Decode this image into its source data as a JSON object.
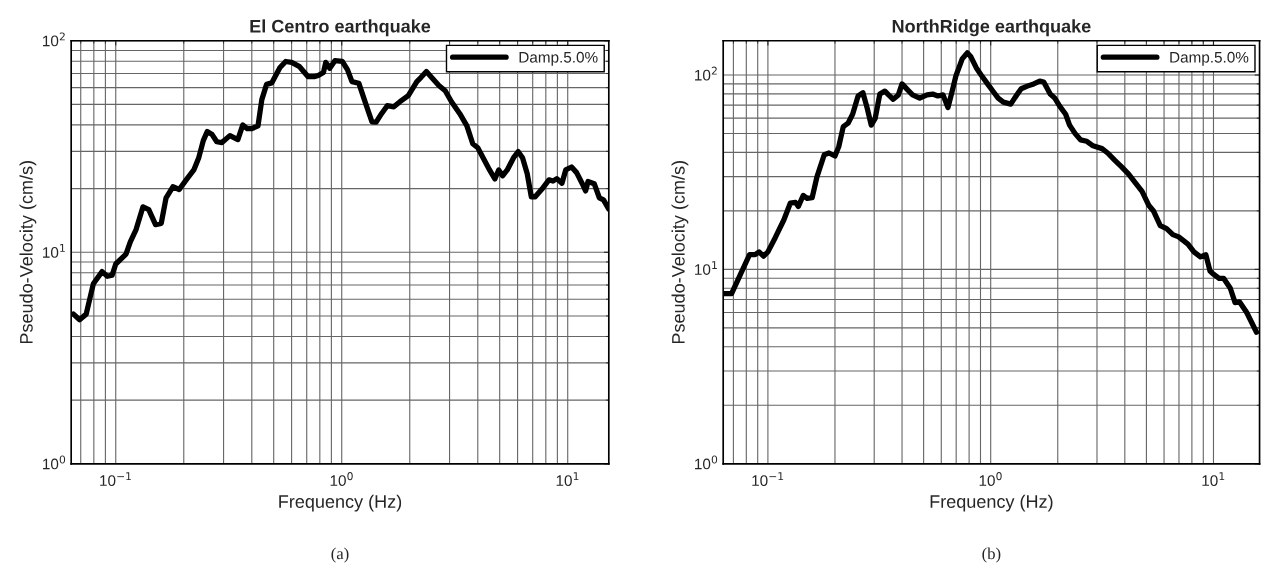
{
  "chart_data": [
    {
      "type": "line",
      "title": "El Centro earthquake",
      "xlabel": "Frequency (Hz)",
      "ylabel": "Pseudo-Velocity (cm/s)",
      "log": "xy",
      "grid": true,
      "legend": "top right",
      "line_style": "solid",
      "xlim": [
        0.0635,
        15.2
      ],
      "ylim": [
        1,
        100
      ],
      "xticks": [
        {
          "value": 0.1,
          "label": "10$^{−1}$"
        },
        {
          "value": 1,
          "label": "10$^{0}$"
        },
        {
          "value": 10,
          "label": "10$^{1}$"
        }
      ],
      "yticks": [
        {
          "value": 1,
          "label": "10$^{0}$"
        },
        {
          "value": 10,
          "label": "10$^{1}$"
        },
        {
          "value": 100,
          "label": "10$^{2}$"
        }
      ],
      "annotations": [
        "(a)"
      ],
      "series": [
        {
          "name": "Damp.5.0%",
          "color": "#000000",
          "x": [
            0.065,
            0.0692,
            0.074,
            0.0796,
            0.087,
            0.0918,
            0.0964,
            0.1,
            0.111,
            0.116,
            0.123,
            0.132,
            0.14,
            0.15,
            0.159,
            0.167,
            0.179,
            0.191,
            0.205,
            0.222,
            0.233,
            0.244,
            0.254,
            0.267,
            0.28,
            0.295,
            0.32,
            0.347,
            0.365,
            0.382,
            0.4,
            0.426,
            0.443,
            0.465,
            0.49,
            0.533,
            0.565,
            0.6,
            0.648,
            0.71,
            0.755,
            0.787,
            0.83,
            0.85,
            0.885,
            0.933,
            1.006,
            1.06,
            1.11,
            1.19,
            1.26,
            1.36,
            1.42,
            1.5,
            1.59,
            1.7,
            1.81,
            1.97,
            2.15,
            2.24,
            2.37,
            2.5,
            2.69,
            2.87,
            3.06,
            3.33,
            3.58,
            3.8,
            4.0,
            4.25,
            4.51,
            4.76,
            4.95,
            5.15,
            5.4,
            5.76,
            6.04,
            6.31,
            6.62,
            6.9,
            7.18,
            7.78,
            8.26,
            8.6,
            8.95,
            9.43,
            9.8,
            10.4,
            10.95,
            11.6,
            12.0,
            12.3,
            13.1,
            13.8,
            14.4,
            15.2
          ],
          "values": [
            5.1,
            4.8,
            5.1,
            7.1,
            8.1,
            7.7,
            7.8,
            8.8,
            9.8,
            11.2,
            12.8,
            16.4,
            15.9,
            13.5,
            13.7,
            18.1,
            20.4,
            19.8,
            22,
            24.6,
            28,
            33.7,
            37.2,
            36,
            33.3,
            33,
            35.6,
            34.1,
            40,
            38.4,
            38.4,
            39.6,
            52.7,
            62.2,
            63.2,
            74.7,
            79.8,
            79,
            75.7,
            67.6,
            67.6,
            68.5,
            70.8,
            79,
            74.1,
            80.5,
            79.8,
            73,
            64.1,
            63,
            52.5,
            41.4,
            41.2,
            45.2,
            49.3,
            48.7,
            51.5,
            55,
            64.1,
            67,
            71.5,
            67,
            61.4,
            58,
            51.5,
            45.2,
            39.6,
            32.6,
            31.2,
            27.6,
            24.5,
            22.2,
            24.5,
            23,
            24.5,
            28,
            29.9,
            28,
            23.5,
            18.3,
            18.3,
            20.2,
            22,
            21.7,
            22.3,
            21.2,
            24.5,
            25.3,
            23.8,
            21.1,
            19.5,
            21.6,
            21.1,
            18.1,
            17.7,
            16
          ]
        }
      ]
    },
    {
      "type": "line",
      "title": "NorthRidge earthquake",
      "xlabel": "Frequency (Hz)",
      "ylabel": "Pseudo-Velocity (cm/s)",
      "log": "xy",
      "grid": true,
      "legend": "top right",
      "line_style": "solid",
      "xlim": [
        0.063,
        16.1
      ],
      "ylim": [
        1,
        150
      ],
      "xticks": [
        {
          "value": 0.1,
          "label": "10$^{−1}$"
        },
        {
          "value": 1,
          "label": "10$^{0}$"
        },
        {
          "value": 10,
          "label": "10$^{1}$"
        }
      ],
      "yticks": [
        {
          "value": 1,
          "label": "10$^{0}$"
        },
        {
          "value": 10,
          "label": "10$^{1}$"
        },
        {
          "value": 100,
          "label": "10$^{2}$"
        }
      ],
      "annotations": [
        "(b)"
      ],
      "series": [
        {
          "name": "Damp.5.0%",
          "color": "#000000",
          "x": [
            0.0638,
            0.0687,
            0.0752,
            0.0827,
            0.0876,
            0.0913,
            0.0956,
            0.1,
            0.108,
            0.118,
            0.126,
            0.133,
            0.137,
            0.144,
            0.15,
            0.158,
            0.166,
            0.179,
            0.188,
            0.2,
            0.208,
            0.218,
            0.229,
            0.24,
            0.254,
            0.267,
            0.279,
            0.291,
            0.303,
            0.318,
            0.335,
            0.348,
            0.365,
            0.385,
            0.4,
            0.424,
            0.446,
            0.48,
            0.518,
            0.549,
            0.579,
            0.611,
            0.643,
            0.67,
            0.698,
            0.745,
            0.785,
            0.815,
            0.861,
            0.906,
            0.968,
            1.03,
            1.08,
            1.14,
            1.23,
            1.3,
            1.37,
            1.47,
            1.56,
            1.66,
            1.73,
            1.85,
            1.94,
            2.04,
            2.17,
            2.26,
            2.39,
            2.53,
            2.7,
            2.88,
            3.16,
            3.35,
            3.6,
            3.87,
            4.16,
            4.47,
            4.78,
            5.13,
            5.39,
            5.77,
            6.16,
            6.57,
            6.98,
            7.68,
            8.17,
            8.74,
            9.24,
            9.65,
            10.0,
            10.6,
            11.1,
            11.9,
            12.5,
            13.1,
            14.1,
            15.6
          ],
          "values": [
            7.5,
            7.5,
            9.4,
            11.9,
            11.9,
            12.3,
            11.7,
            12.3,
            14.6,
            18,
            21.9,
            22.1,
            21.1,
            24,
            23.2,
            23.4,
            29.9,
            38.9,
            39.7,
            38.3,
            42.8,
            54.3,
            56.5,
            62.8,
            78,
            81,
            67.5,
            55.2,
            59.8,
            79.8,
            82.6,
            79,
            75,
            79,
            90,
            83.8,
            79,
            76,
            79,
            79.8,
            78,
            79,
            68,
            81.7,
            99,
            121,
            130,
            124,
            109,
            100,
            90,
            81.7,
            76,
            72.5,
            70.8,
            78,
            85,
            87.9,
            90,
            93,
            92,
            79.8,
            76,
            69.2,
            62.8,
            55.2,
            50.1,
            46.4,
            45.6,
            43.2,
            41.8,
            39.7,
            36.5,
            33.7,
            30.9,
            27.8,
            25.2,
            21.3,
            19.9,
            16.8,
            16.2,
            15.1,
            14.7,
            13.5,
            12.3,
            11.6,
            11.9,
            9.8,
            9.45,
            9.0,
            9.0,
            8.0,
            6.75,
            6.8,
            6.0,
            4.75
          ]
        }
      ]
    }
  ]
}
